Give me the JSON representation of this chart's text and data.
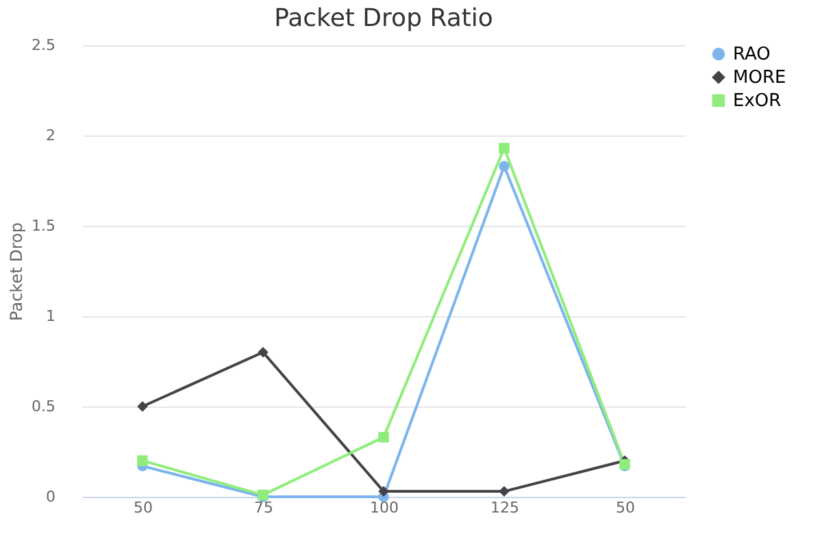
{
  "chart_data": {
    "type": "line",
    "title": "Packet Drop Ratio",
    "ylabel": "Packet Drop",
    "categories": [
      "50",
      "75",
      "100",
      "125",
      "50"
    ],
    "series": [
      {
        "name": "RAO",
        "color": "#7cb5ec",
        "marker": "circle",
        "values": [
          0.17,
          0,
          0,
          1.83,
          0.17
        ]
      },
      {
        "name": "MORE",
        "color": "#434348",
        "marker": "diamond",
        "values": [
          0.5,
          0.8,
          0.03,
          0.03,
          0.2
        ]
      },
      {
        "name": "ExOR",
        "color": "#90ed7d",
        "marker": "square",
        "values": [
          0.2,
          0.01,
          0.33,
          1.93,
          0.18
        ]
      }
    ],
    "ylim": [
      0,
      2.5
    ],
    "yticks": [
      0,
      0.5,
      1,
      1.5,
      2,
      2.5
    ],
    "grid": "y",
    "legend": "right"
  }
}
